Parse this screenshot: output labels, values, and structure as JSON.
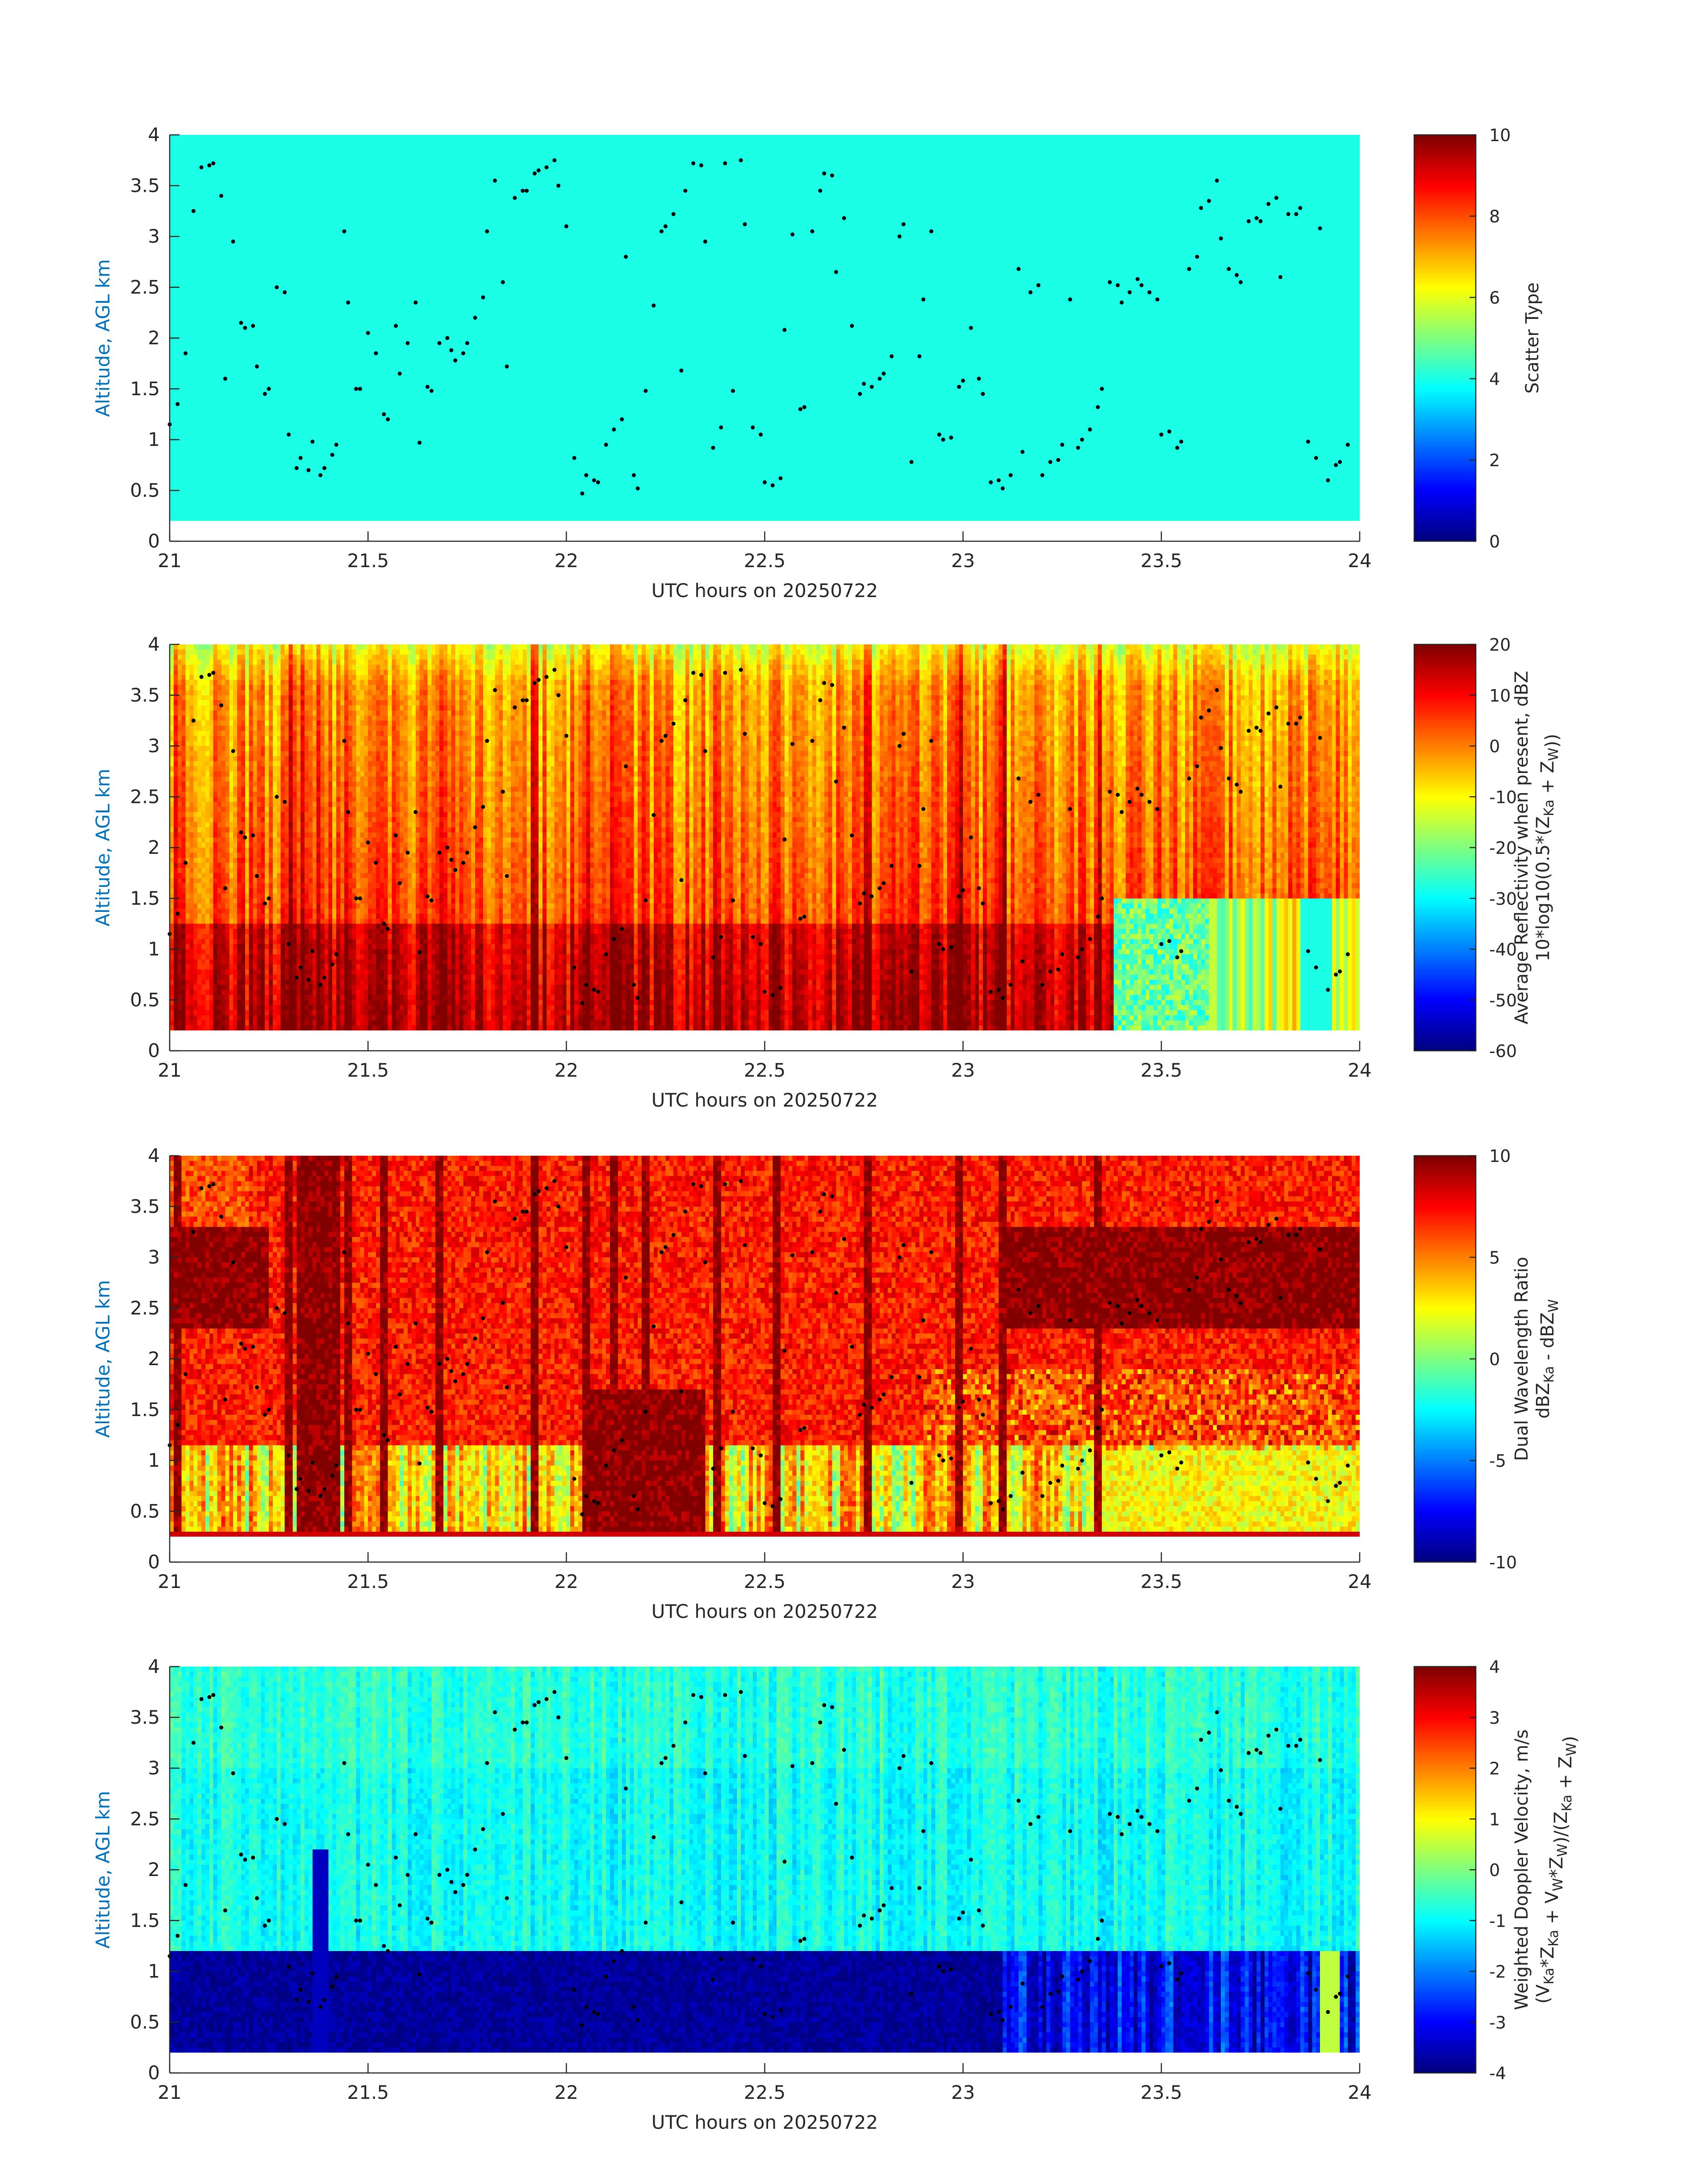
{
  "colors": {
    "ylabel": "#0072BD",
    "axis": "#262626",
    "marker": "#000000",
    "colormap": "jet"
  },
  "chart_data": [
    {
      "type": "heatmap",
      "title": "",
      "xlabel": "UTC hours on 20250722",
      "ylabel": "Altitude, AGL km",
      "xlim": [
        21,
        24
      ],
      "ylim": [
        0,
        4
      ],
      "xticks": [
        "21",
        "21.5",
        "22",
        "22.5",
        "23",
        "23.5",
        "24"
      ],
      "yticks": [
        "0",
        "0.5",
        "1",
        "1.5",
        "2",
        "2.5",
        "3",
        "3.5",
        "4"
      ],
      "data_bottom_km": 0.2,
      "colorbar": {
        "label_lines": [
          "Scatter Type"
        ],
        "clim": [
          0,
          10
        ],
        "ticks": [
          "0",
          "2",
          "4",
          "6",
          "8",
          "10"
        ]
      },
      "field": "scatter_type",
      "uniform_value": 4
    },
    {
      "type": "heatmap",
      "title": "",
      "xlabel": "UTC hours on 20250722",
      "ylabel": "Altitude, AGL km",
      "xlim": [
        21,
        24
      ],
      "ylim": [
        0,
        4
      ],
      "xticks": [
        "21",
        "21.5",
        "22",
        "22.5",
        "23",
        "23.5",
        "24"
      ],
      "yticks": [
        "0",
        "0.5",
        "1",
        "1.5",
        "2",
        "2.5",
        "3",
        "3.5",
        "4"
      ],
      "data_bottom_km": 0.2,
      "colorbar": {
        "label_lines": [
          "Average Reflectivity when present, dBZ",
          "10*log10(0.5*(Z_Ka + Z_W))"
        ],
        "clim": [
          -60,
          20
        ],
        "ticks": [
          "-60",
          "-50",
          "-40",
          "-30",
          "-20",
          "-10",
          "0",
          "10",
          "20"
        ]
      },
      "field": "reflectivity"
    },
    {
      "type": "heatmap",
      "title": "",
      "xlabel": "UTC hours on 20250722",
      "ylabel": "Altitude, AGL km",
      "xlim": [
        21,
        24
      ],
      "ylim": [
        0,
        4
      ],
      "xticks": [
        "21",
        "21.5",
        "22",
        "22.5",
        "23",
        "23.5",
        "24"
      ],
      "yticks": [
        "0",
        "0.5",
        "1",
        "1.5",
        "2",
        "2.5",
        "3",
        "3.5",
        "4"
      ],
      "data_bottom_km": 0.25,
      "colorbar": {
        "label_lines": [
          "Dual Wavelength Ratio",
          "dBZ_Ka - dBZ_W"
        ],
        "clim": [
          -10,
          10
        ],
        "ticks": [
          "-10",
          "-5",
          "0",
          "5",
          "10"
        ]
      },
      "field": "dwr"
    },
    {
      "type": "heatmap",
      "title": "",
      "xlabel": "UTC hours on 20250722",
      "ylabel": "Altitude, AGL km",
      "xlim": [
        21,
        24
      ],
      "ylim": [
        0,
        4
      ],
      "xticks": [
        "21",
        "21.5",
        "22",
        "22.5",
        "23",
        "23.5",
        "24"
      ],
      "yticks": [
        "0",
        "0.5",
        "1",
        "1.5",
        "2",
        "2.5",
        "3",
        "3.5",
        "4"
      ],
      "data_bottom_km": 0.2,
      "colorbar": {
        "label_lines": [
          "Weighted Doppler Velocity, m/s",
          "(V_Ka*Z_Ka + V_W*Z_W)/(Z_Ka + Z_W)"
        ],
        "clim": [
          -4,
          4
        ],
        "ticks": [
          "-4",
          "-3",
          "-2",
          "-1",
          "0",
          "1",
          "2",
          "3",
          "4"
        ]
      },
      "field": "doppler"
    }
  ],
  "overlay_points": [
    [
      21.0,
      1.15
    ],
    [
      21.02,
      1.35
    ],
    [
      21.04,
      1.85
    ],
    [
      21.06,
      3.25
    ],
    [
      21.08,
      3.68
    ],
    [
      21.1,
      3.7
    ],
    [
      21.11,
      3.72
    ],
    [
      21.13,
      3.4
    ],
    [
      21.14,
      1.6
    ],
    [
      21.16,
      2.95
    ],
    [
      21.18,
      2.15
    ],
    [
      21.19,
      2.1
    ],
    [
      21.21,
      2.12
    ],
    [
      21.22,
      1.72
    ],
    [
      21.24,
      1.45
    ],
    [
      21.25,
      1.5
    ],
    [
      21.27,
      2.5
    ],
    [
      21.29,
      2.45
    ],
    [
      21.3,
      1.05
    ],
    [
      21.32,
      0.72
    ],
    [
      21.33,
      0.82
    ],
    [
      21.35,
      0.7
    ],
    [
      21.36,
      0.98
    ],
    [
      21.38,
      0.65
    ],
    [
      21.39,
      0.72
    ],
    [
      21.41,
      0.85
    ],
    [
      21.42,
      0.95
    ],
    [
      21.44,
      3.05
    ],
    [
      21.45,
      2.35
    ],
    [
      21.47,
      1.5
    ],
    [
      21.48,
      1.5
    ],
    [
      21.5,
      2.05
    ],
    [
      21.52,
      1.85
    ],
    [
      21.54,
      1.25
    ],
    [
      21.55,
      1.2
    ],
    [
      21.57,
      2.12
    ],
    [
      21.58,
      1.65
    ],
    [
      21.6,
      1.95
    ],
    [
      21.62,
      2.35
    ],
    [
      21.63,
      0.97
    ],
    [
      21.65,
      1.52
    ],
    [
      21.66,
      1.48
    ],
    [
      21.68,
      1.95
    ],
    [
      21.7,
      2.0
    ],
    [
      21.71,
      1.88
    ],
    [
      21.72,
      1.78
    ],
    [
      21.74,
      1.85
    ],
    [
      21.75,
      1.95
    ],
    [
      21.77,
      2.2
    ],
    [
      21.79,
      2.4
    ],
    [
      21.8,
      3.05
    ],
    [
      21.82,
      3.55
    ],
    [
      21.84,
      2.55
    ],
    [
      21.85,
      1.72
    ],
    [
      21.87,
      3.38
    ],
    [
      21.89,
      3.45
    ],
    [
      21.9,
      3.45
    ],
    [
      21.92,
      3.62
    ],
    [
      21.93,
      3.65
    ],
    [
      21.95,
      3.68
    ],
    [
      21.97,
      3.75
    ],
    [
      21.98,
      3.5
    ],
    [
      22.0,
      3.1
    ],
    [
      22.02,
      0.82
    ],
    [
      22.04,
      0.47
    ],
    [
      22.05,
      0.65
    ],
    [
      22.07,
      0.6
    ],
    [
      22.08,
      0.58
    ],
    [
      22.1,
      0.95
    ],
    [
      22.12,
      1.1
    ],
    [
      22.14,
      1.2
    ],
    [
      22.15,
      2.8
    ],
    [
      22.17,
      0.65
    ],
    [
      22.18,
      0.52
    ],
    [
      22.2,
      1.48
    ],
    [
      22.22,
      2.32
    ],
    [
      22.24,
      3.05
    ],
    [
      22.25,
      3.1
    ],
    [
      22.27,
      3.22
    ],
    [
      22.29,
      1.68
    ],
    [
      22.3,
      3.45
    ],
    [
      22.32,
      3.72
    ],
    [
      22.34,
      3.7
    ],
    [
      22.35,
      2.95
    ],
    [
      22.37,
      0.92
    ],
    [
      22.39,
      1.12
    ],
    [
      22.4,
      3.72
    ],
    [
      22.42,
      1.48
    ],
    [
      22.44,
      3.75
    ],
    [
      22.45,
      3.12
    ],
    [
      22.47,
      1.12
    ],
    [
      22.49,
      1.05
    ],
    [
      22.5,
      0.58
    ],
    [
      22.52,
      0.55
    ],
    [
      22.54,
      0.62
    ],
    [
      22.55,
      2.08
    ],
    [
      22.57,
      3.02
    ],
    [
      22.59,
      1.3
    ],
    [
      22.6,
      1.32
    ],
    [
      22.62,
      3.05
    ],
    [
      22.64,
      3.45
    ],
    [
      22.65,
      3.62
    ],
    [
      22.67,
      3.6
    ],
    [
      22.68,
      2.65
    ],
    [
      22.7,
      3.18
    ],
    [
      22.72,
      2.12
    ],
    [
      22.74,
      1.45
    ],
    [
      22.75,
      1.55
    ],
    [
      22.77,
      1.52
    ],
    [
      22.79,
      1.6
    ],
    [
      22.8,
      1.65
    ],
    [
      22.82,
      1.82
    ],
    [
      22.84,
      3.0
    ],
    [
      22.85,
      3.12
    ],
    [
      22.87,
      0.78
    ],
    [
      22.89,
      1.82
    ],
    [
      22.9,
      2.38
    ],
    [
      22.92,
      3.05
    ],
    [
      22.94,
      1.05
    ],
    [
      22.95,
      1.0
    ],
    [
      22.97,
      1.02
    ],
    [
      22.99,
      1.52
    ],
    [
      23.0,
      1.58
    ],
    [
      23.02,
      2.1
    ],
    [
      23.04,
      1.6
    ],
    [
      23.05,
      1.45
    ],
    [
      23.07,
      0.58
    ],
    [
      23.09,
      0.6
    ],
    [
      23.1,
      0.52
    ],
    [
      23.12,
      0.65
    ],
    [
      23.14,
      2.68
    ],
    [
      23.15,
      0.88
    ],
    [
      23.17,
      2.45
    ],
    [
      23.19,
      2.52
    ],
    [
      23.2,
      0.65
    ],
    [
      23.22,
      0.78
    ],
    [
      23.24,
      0.8
    ],
    [
      23.25,
      0.95
    ],
    [
      23.27,
      2.38
    ],
    [
      23.29,
      0.92
    ],
    [
      23.3,
      1.0
    ],
    [
      23.32,
      1.1
    ],
    [
      23.34,
      1.32
    ],
    [
      23.35,
      1.5
    ],
    [
      23.37,
      2.55
    ],
    [
      23.39,
      2.52
    ],
    [
      23.4,
      2.35
    ],
    [
      23.42,
      2.45
    ],
    [
      23.44,
      2.58
    ],
    [
      23.45,
      2.52
    ],
    [
      23.47,
      2.45
    ],
    [
      23.49,
      2.38
    ],
    [
      23.5,
      1.05
    ],
    [
      23.52,
      1.08
    ],
    [
      23.54,
      0.92
    ],
    [
      23.55,
      0.98
    ],
    [
      23.57,
      2.68
    ],
    [
      23.59,
      2.8
    ],
    [
      23.6,
      3.28
    ],
    [
      23.62,
      3.35
    ],
    [
      23.64,
      3.55
    ],
    [
      23.65,
      2.98
    ],
    [
      23.67,
      2.68
    ],
    [
      23.69,
      2.62
    ],
    [
      23.7,
      2.55
    ],
    [
      23.72,
      3.15
    ],
    [
      23.74,
      3.18
    ],
    [
      23.75,
      3.15
    ],
    [
      23.77,
      3.32
    ],
    [
      23.79,
      3.38
    ],
    [
      23.8,
      2.6
    ],
    [
      23.82,
      3.22
    ],
    [
      23.84,
      3.22
    ],
    [
      23.85,
      3.28
    ],
    [
      23.87,
      0.98
    ],
    [
      23.89,
      0.82
    ],
    [
      23.9,
      3.08
    ],
    [
      23.92,
      0.6
    ],
    [
      23.94,
      0.75
    ],
    [
      23.95,
      0.78
    ],
    [
      23.97,
      0.95
    ]
  ]
}
